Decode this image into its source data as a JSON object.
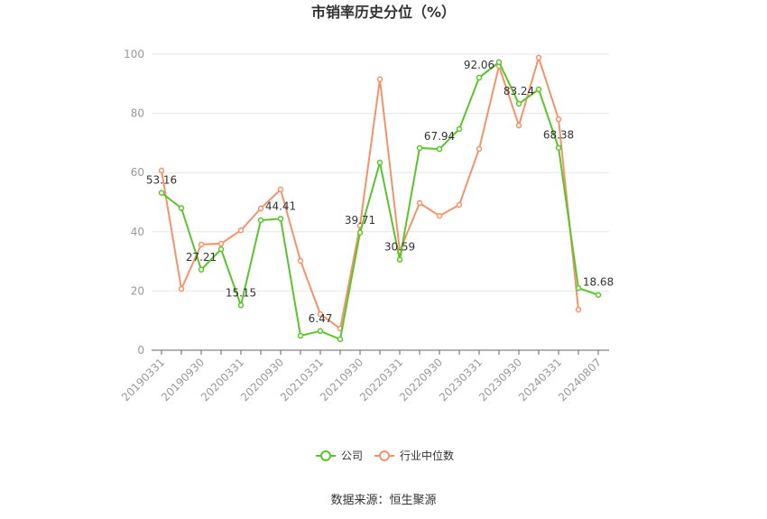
{
  "chart_data": {
    "type": "line",
    "title": "市销率历史分位（%）",
    "source": "数据来源：恒生聚源",
    "categories": [
      "20190331",
      null,
      "20190930",
      null,
      "20200331",
      null,
      "20200930",
      null,
      "20210331",
      null,
      "20210930",
      null,
      "20220331",
      null,
      "20220930",
      null,
      "20230331",
      null,
      "20230930",
      null,
      "20240331",
      null,
      "20240807"
    ],
    "ylim": [
      0,
      100
    ],
    "yticks": [
      0,
      20,
      40,
      60,
      80,
      100
    ],
    "grid": true,
    "legend": "bottom",
    "series": [
      {
        "name": "公司",
        "color": "#5cc42b",
        "values": [
          53.16,
          48,
          27.21,
          34.1,
          15.15,
          43.9,
          44.41,
          4.9,
          6.47,
          3.7,
          39.71,
          63.4,
          30.59,
          68.3,
          67.94,
          74.7,
          92.06,
          97.3,
          83.24,
          88.1,
          68.38,
          21.0,
          18.68
        ],
        "value_labels": [
          "53.16",
          null,
          "27.21",
          null,
          "15.15",
          null,
          "44.41",
          null,
          "6.47",
          null,
          "39.71",
          null,
          "30.59",
          null,
          "67.94",
          null,
          "92.06",
          null,
          "83.24",
          null,
          "68.38",
          null,
          "18.68"
        ]
      },
      {
        "name": "行业中位数",
        "color": "#f4936a",
        "values": [
          60.7,
          20.7,
          35.7,
          36.0,
          40.5,
          47.9,
          54.3,
          30.2,
          12.2,
          7.3,
          42.1,
          91.5,
          33.5,
          49.7,
          45.4,
          49.1,
          68.0,
          96.0,
          75.9,
          98.8,
          78.0,
          13.7,
          null
        ]
      }
    ]
  }
}
